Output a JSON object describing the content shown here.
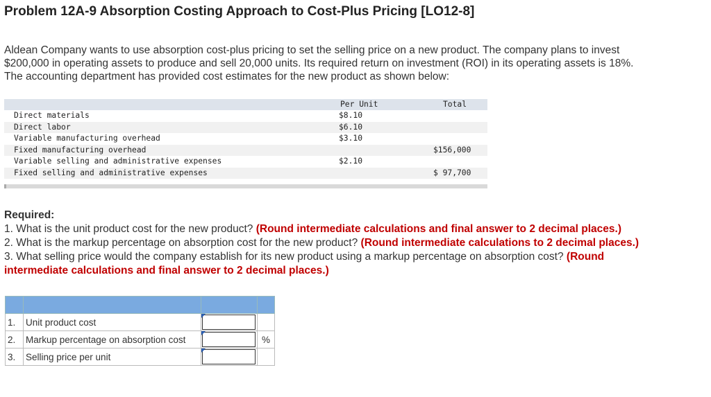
{
  "title": "Problem 12A-9 Absorption Costing Approach to Cost-Plus Pricing [LO12-8]",
  "intro": [
    "Aldean Company wants to use absorption cost-plus pricing to set the selling price on a new product. The company plans to invest",
    "$200,000 in operating assets to produce and sell 20,000 units. Its required return on investment (ROI) in its operating assets is 18%.",
    "The accounting department has provided cost estimates for the new product as shown below:"
  ],
  "cost_table": {
    "col_per_unit": "Per Unit",
    "col_total": "Total",
    "rows": [
      {
        "label": "Direct materials",
        "per_unit": "$8.10",
        "total": ""
      },
      {
        "label": "Direct labor",
        "per_unit": "$6.10",
        "total": ""
      },
      {
        "label": "Variable manufacturing overhead",
        "per_unit": "$3.10",
        "total": ""
      },
      {
        "label": "Fixed manufacturing overhead",
        "per_unit": "",
        "total": "$156,000"
      },
      {
        "label": "Variable selling and administrative expenses",
        "per_unit": "$2.10",
        "total": ""
      },
      {
        "label": "Fixed selling and administrative expenses",
        "per_unit": "",
        "total": "$ 97,700"
      }
    ]
  },
  "required": {
    "heading": "Required:",
    "q1_text": "1. What is the unit product cost for the new product?",
    "q1_note": "(Round intermediate calculations and final answer to 2 decimal places.)",
    "q2_text": "2. What is the markup percentage on absorption cost for the new product?",
    "q2_note": "(Round intermediate calculations to 2 decimal places.)",
    "q3_text": "3. What selling price would the company establish for its new product using a markup percentage on absorption cost?",
    "q3_note_a": "(Round",
    "q3_note_b": "intermediate calculations and final answer to 2 decimal places.)"
  },
  "answers": [
    {
      "num": "1.",
      "label": "Unit product cost",
      "value": "",
      "unit": ""
    },
    {
      "num": "2.",
      "label": "Markup percentage on absorption cost",
      "value": "",
      "unit": "%"
    },
    {
      "num": "3.",
      "label": "Selling price per unit",
      "value": "",
      "unit": ""
    }
  ]
}
